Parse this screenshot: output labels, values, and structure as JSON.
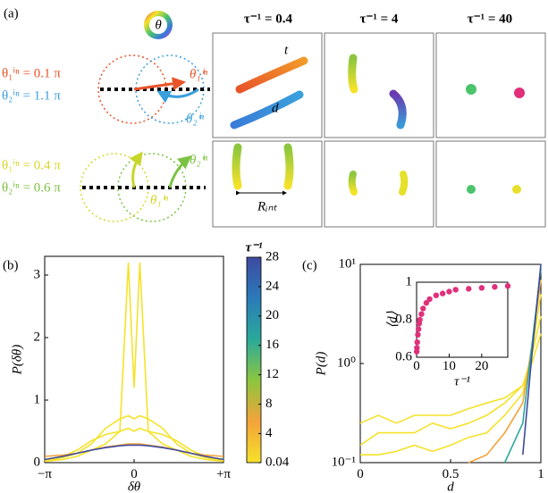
{
  "diagram": {
    "label": "(a)",
    "symbol": "θ",
    "columns": [
      "τ⁻¹ = 0.4",
      "τ⁻¹ = 4",
      "τ⁻¹ = 40"
    ],
    "rows": [
      {
        "lines": [
          {
            "text": "θ₁ⁱⁿ = 0.1 π",
            "color": "#e8542a"
          },
          {
            "text": "θ₂ⁱⁿ = 1.1 π",
            "color": "#3aa0dc"
          }
        ],
        "arrow_labels": [
          "θ₁ⁱⁿ",
          "θ₂ⁱⁿ"
        ]
      },
      {
        "lines": [
          {
            "text": "θ₁ⁱⁿ = 0.4 π",
            "color": "#d8d62a"
          },
          {
            "text": "θ₂ⁱⁿ = 0.6 π",
            "color": "#7cc242"
          }
        ],
        "arrow_labels": [
          "θ₁ⁱⁿ",
          "θ₂ⁱⁿ"
        ]
      }
    ],
    "annotations": [
      "t",
      "d",
      "Rᵢₙₜ"
    ]
  },
  "chart_data": [
    {
      "type": "line",
      "label": "(b)",
      "x_label": "δθ",
      "y_label": "P(δθ)",
      "x": [
        -3.14,
        -2.5,
        -2,
        -1.5,
        -1,
        -0.5,
        -0.2,
        0,
        0.2,
        0.5,
        1,
        1.5,
        2,
        2.5,
        3.14
      ],
      "xlim": [
        -3.1416,
        3.1416
      ],
      "xticks": [
        {
          "value": -3.1416,
          "label": "−π"
        },
        0,
        {
          "value": 3.1416,
          "label": "+π"
        }
      ],
      "ylim": [
        0,
        3.3
      ],
      "yticks": [
        0,
        1,
        2,
        3
      ],
      "series": [
        {
          "color": "#f5e22a",
          "values": [
            0.02,
            0.05,
            0.1,
            0.2,
            0.3,
            0.5,
            3.2,
            1.2,
            3.2,
            0.5,
            0.3,
            0.2,
            0.1,
            0.05,
            0.02
          ]
        },
        {
          "color": "#f5e22a",
          "values": [
            0.03,
            0.08,
            0.15,
            0.3,
            0.55,
            0.7,
            0.75,
            0.7,
            0.75,
            0.7,
            0.55,
            0.3,
            0.15,
            0.08,
            0.03
          ]
        },
        {
          "color": "#f5e22a",
          "values": [
            0.05,
            0.1,
            0.2,
            0.35,
            0.45,
            0.5,
            0.55,
            0.5,
            0.55,
            0.5,
            0.45,
            0.35,
            0.2,
            0.1,
            0.05
          ]
        },
        {
          "color": "#f4a33a",
          "values": [
            0.1,
            0.12,
            0.15,
            0.2,
            0.25,
            0.28,
            0.3,
            0.3,
            0.3,
            0.28,
            0.25,
            0.2,
            0.15,
            0.12,
            0.1
          ]
        },
        {
          "color": "#3e4aa0",
          "values": [
            0.05,
            0.1,
            0.15,
            0.2,
            0.24,
            0.27,
            0.28,
            0.28,
            0.28,
            0.27,
            0.24,
            0.2,
            0.15,
            0.1,
            0.05
          ]
        }
      ],
      "colorbar": {
        "label": "τ⁻¹",
        "lim": [
          0.04,
          28
        ],
        "ticks": [
          0.04,
          4,
          8,
          12,
          16,
          20,
          24,
          28
        ],
        "colors": [
          "#f5e22a",
          "#f4a33a",
          "#8cc63f",
          "#2aa99a",
          "#2b7bb9",
          "#3e4aa0"
        ]
      }
    },
    {
      "type": "line",
      "label": "(c)",
      "x_label": "d",
      "y_label": "P(d)",
      "log_y": true,
      "x": [
        0,
        0.1,
        0.2,
        0.3,
        0.4,
        0.5,
        0.6,
        0.7,
        0.8,
        0.9,
        0.95,
        1
      ],
      "xlim": [
        0,
        1
      ],
      "xticks": [
        0,
        0.5,
        1
      ],
      "ylim": [
        0.1,
        10
      ],
      "yticks": [
        {
          "value": 0.1,
          "label": "10⁻¹"
        },
        {
          "value": 1,
          "label": "10⁰"
        },
        {
          "value": 10,
          "label": "10¹"
        }
      ],
      "series": [
        {
          "color": "#f5e22a",
          "values": [
            0.25,
            0.3,
            0.25,
            0.3,
            0.3,
            0.3,
            0.35,
            0.4,
            0.45,
            0.6,
            1,
            2
          ]
        },
        {
          "color": "#f5e22a",
          "values": [
            0.15,
            0.2,
            0.2,
            0.2,
            0.25,
            0.22,
            0.25,
            0.3,
            0.4,
            0.6,
            1.2,
            3
          ]
        },
        {
          "color": "#f5e22a",
          "values": [
            0.12,
            0.12,
            0.13,
            0.15,
            0.13,
            0.15,
            0.18,
            0.2,
            0.3,
            0.5,
            1.3,
            5
          ]
        },
        {
          "color": "#f4a33a",
          "values": [
            null,
            null,
            null,
            null,
            null,
            null,
            0.1,
            0.12,
            0.2,
            0.4,
            1.5,
            7
          ]
        },
        {
          "color": "#2aa99a",
          "values": [
            null,
            null,
            null,
            null,
            null,
            null,
            null,
            null,
            0.1,
            0.25,
            1.5,
            9
          ]
        },
        {
          "color": "#3e4aa0",
          "values": [
            null,
            null,
            null,
            null,
            null,
            null,
            null,
            null,
            null,
            0.12,
            1.2,
            10
          ]
        }
      ]
    },
    {
      "type": "scatter",
      "x_label": "τ⁻¹",
      "y_label": "⟨d⟩",
      "color": "#e0307a",
      "x": [
        0.04,
        0.1,
        0.2,
        0.4,
        0.6,
        0.8,
        1,
        1.5,
        2,
        3,
        4,
        6,
        8,
        10,
        12,
        16,
        20,
        24,
        28
      ],
      "values": [
        0.63,
        0.65,
        0.68,
        0.72,
        0.75,
        0.78,
        0.8,
        0.83,
        0.86,
        0.89,
        0.91,
        0.93,
        0.94,
        0.95,
        0.96,
        0.965,
        0.97,
        0.975,
        0.98
      ],
      "xlim": [
        0,
        28
      ],
      "xticks": [
        0,
        10,
        20
      ],
      "ylim": [
        0.6,
        1
      ],
      "yticks": [
        0.6,
        0.8,
        1
      ]
    }
  ]
}
